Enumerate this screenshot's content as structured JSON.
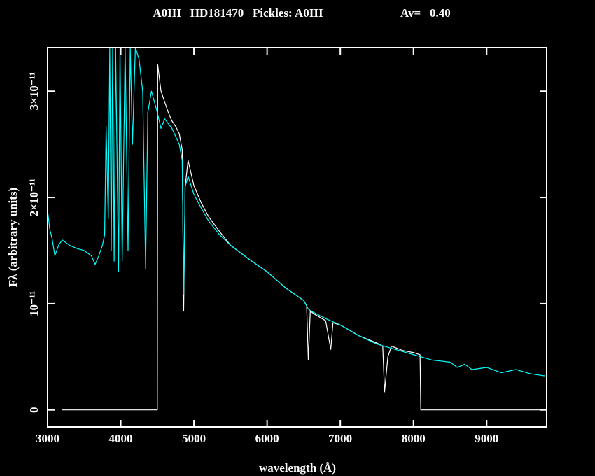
{
  "chart_data": {
    "type": "line",
    "title": "A0III   HD181470   Pickles: A0III",
    "annotation": "Av=   0.40",
    "xlabel": "wavelength (Å)",
    "ylabel": "Fλ (arbitrary units)",
    "xlim": [
      3000,
      9820
    ],
    "ylim": [
      -1.6e-12,
      3.41e-11
    ],
    "xticks": [
      3000,
      4000,
      5000,
      6000,
      7000,
      8000,
      9000
    ],
    "yticks": [
      0,
      {
        "value": 1e-11,
        "label": "10⁻¹¹"
      },
      {
        "value": 2e-11,
        "label": "2×10⁻¹¹"
      },
      {
        "value": 3e-11,
        "label": "3×10⁻¹¹"
      }
    ],
    "series": [
      {
        "color": "#ffffff",
        "x": [
          3200,
          4500,
          4505,
          4550,
          4600,
          4650,
          4700,
          4750,
          4800,
          4840,
          4860,
          4880,
          4920,
          5000,
          5100,
          5200,
          5350,
          5500,
          5750,
          6000,
          6250,
          6500,
          6540,
          6563,
          6590,
          6650,
          6800,
          6870,
          6900,
          7000,
          7250,
          7500,
          7580,
          7605,
          7650,
          7700,
          7850,
          8000,
          8090,
          8100,
          9800
        ],
        "values": [
          0,
          0,
          3.25e-11,
          3e-11,
          2.9e-11,
          2.8e-11,
          2.72e-11,
          2.67e-11,
          2.6e-11,
          2.45e-11,
          9.3e-12,
          2.1e-11,
          2.35e-11,
          2.11e-11,
          1.95e-11,
          1.82e-11,
          1.68e-11,
          1.55e-11,
          1.42e-11,
          1.3e-11,
          1.15e-11,
          1.03e-11,
          9.8e-12,
          4.7e-12,
          9.3e-12,
          9e-12,
          8.4e-12,
          5.7e-12,
          8.2e-12,
          8e-12,
          7e-12,
          6.3e-12,
          6e-12,
          1.7e-12,
          5e-12,
          6e-12,
          5.6e-12,
          5.4e-12,
          5.2e-12,
          0,
          0
        ]
      },
      {
        "color": "#00ffff",
        "x": [
          3000,
          3030,
          3060,
          3100,
          3150,
          3200,
          3300,
          3400,
          3500,
          3600,
          3650,
          3700,
          3750,
          3780,
          3800,
          3830,
          3850,
          3870,
          3890,
          3910,
          3930,
          3970,
          3990,
          4020,
          4060,
          4100,
          4130,
          4160,
          4200,
          4250,
          4300,
          4340,
          4370,
          4420,
          4500,
          4550,
          4600,
          4700,
          4800,
          4840,
          4861,
          4880,
          4920,
          5000,
          5100,
          5200,
          5350,
          5500,
          5750,
          6000,
          6250,
          6500,
          6563,
          6600,
          6800,
          7000,
          7250,
          7500,
          7750,
          8000,
          8250,
          8500,
          8600,
          8700,
          8800,
          9000,
          9200,
          9400,
          9600,
          9800
        ],
        "values": [
          1.88e-11,
          1.7e-11,
          1.62e-11,
          1.45e-11,
          1.55e-11,
          1.6e-11,
          1.55e-11,
          1.52e-11,
          1.5e-11,
          1.45e-11,
          1.37e-11,
          1.45e-11,
          1.55e-11,
          1.65e-11,
          2.67e-11,
          1.8e-11,
          3.41e-11,
          1.5e-11,
          3.41e-11,
          1.4e-11,
          3.41e-11,
          1.3e-11,
          3.41e-11,
          1.4e-11,
          3.41e-11,
          1.5e-11,
          3.41e-11,
          2.5e-11,
          3.41e-11,
          3.3e-11,
          3e-11,
          1.33e-11,
          2.8e-11,
          3e-11,
          2.8e-11,
          2.65e-11,
          2.74e-11,
          2.65e-11,
          2.5e-11,
          2.35e-11,
          1.09e-11,
          2.1e-11,
          2.2e-11,
          2.03e-11,
          1.9e-11,
          1.78e-11,
          1.65e-11,
          1.55e-11,
          1.42e-11,
          1.3e-11,
          1.15e-11,
          1.03e-11,
          9.5e-12,
          9.3e-12,
          8.6e-12,
          8e-12,
          7e-12,
          6.2e-12,
          5.7e-12,
          5.2e-12,
          4.7e-12,
          4.5e-12,
          4e-12,
          4.3e-12,
          3.8e-12,
          4e-12,
          3.5e-12,
          3.8e-12,
          3.4e-12,
          3.2e-12
        ]
      }
    ]
  }
}
